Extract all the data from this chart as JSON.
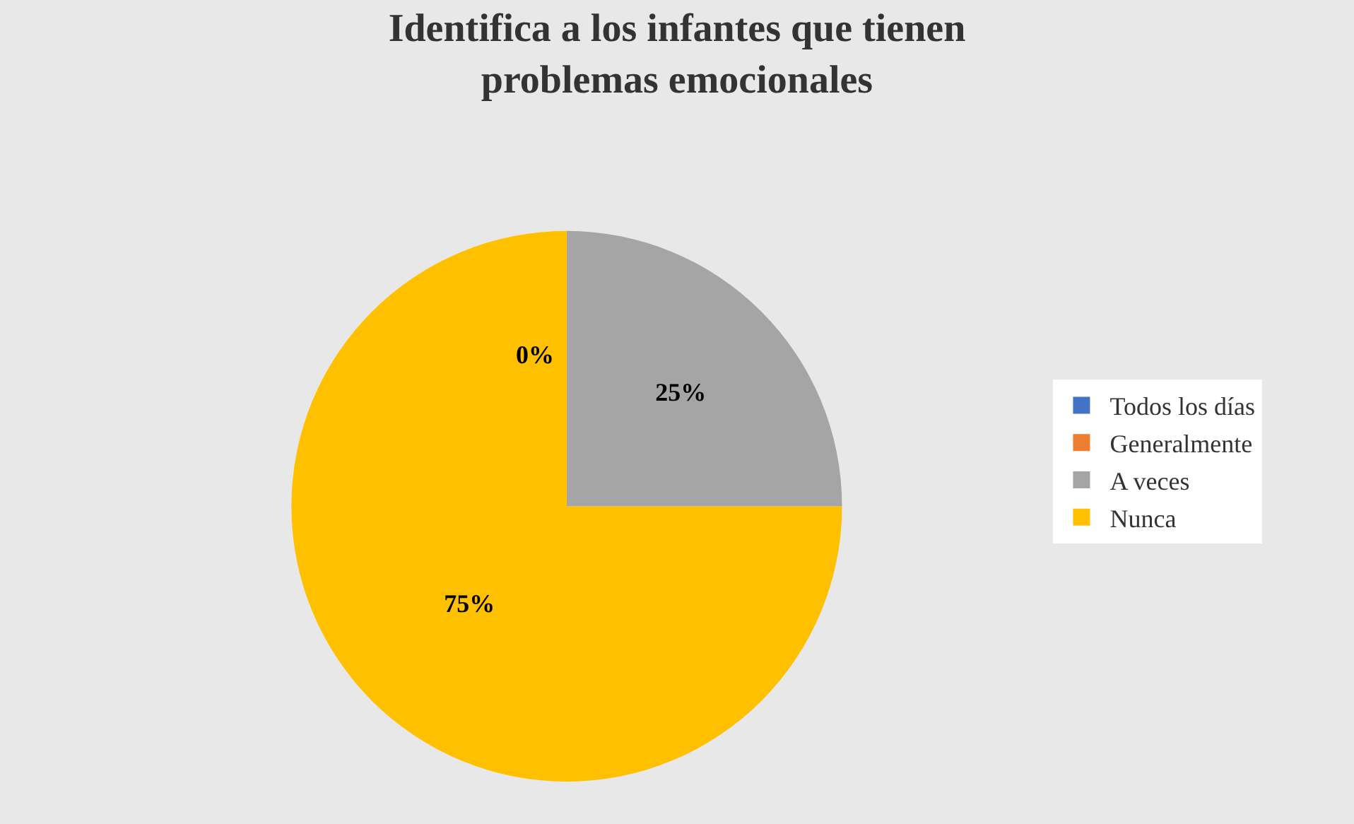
{
  "chart_data": {
    "type": "pie",
    "title": "Identifica a los infantes que tienen problemas emocionales",
    "categories": [
      "Todos los días",
      "Generalmente",
      "A veces",
      "Nunca"
    ],
    "values": [
      0,
      0,
      25,
      75
    ],
    "value_labels": [
      null,
      "0%",
      "25%",
      "75%"
    ],
    "colors": [
      "#4472c4",
      "#ed7d31",
      "#a5a5a5",
      "#ffc000"
    ],
    "legend": "right"
  }
}
